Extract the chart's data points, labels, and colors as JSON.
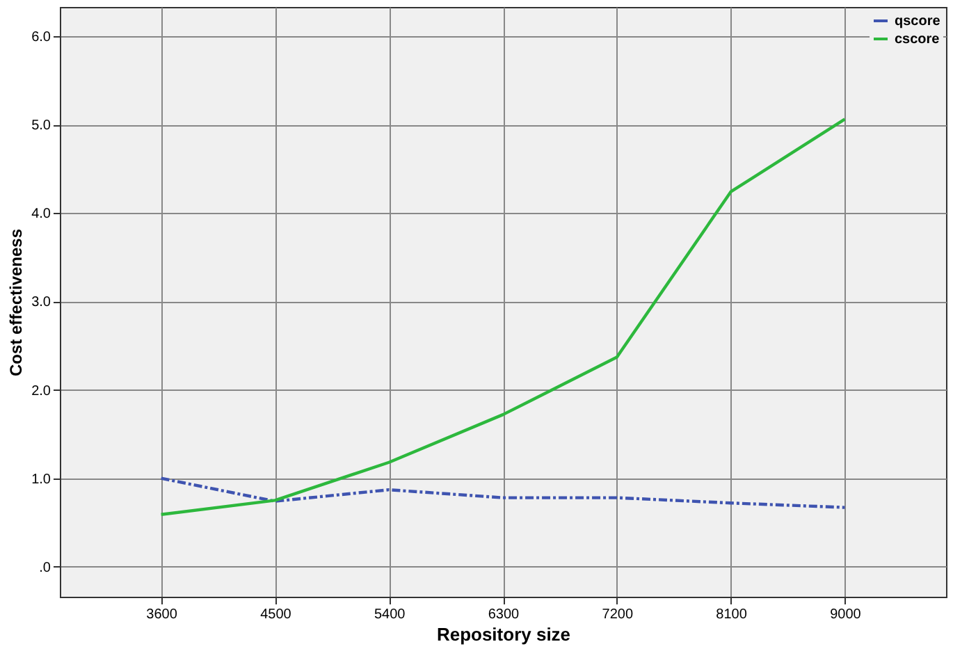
{
  "chart_data": {
    "type": "line",
    "xlabel": "Repository size",
    "ylabel": "Cost effectiveness",
    "x": [
      3600,
      4500,
      5400,
      6300,
      7200,
      8100,
      9000
    ],
    "series": [
      {
        "name": "qscore",
        "color": "#3f54b0",
        "line_style": "dashed",
        "values": [
          1.0,
          0.74,
          0.87,
          0.78,
          0.78,
          0.72,
          0.67
        ]
      },
      {
        "name": "cscore",
        "color": "#2db83d",
        "line_style": "solid",
        "values": [
          0.59,
          0.75,
          1.18,
          1.72,
          2.37,
          4.24,
          5.06
        ]
      }
    ],
    "xlim": [
      2800,
      9800
    ],
    "xticks": [
      3600,
      4500,
      5400,
      6300,
      7200,
      8100,
      9000
    ],
    "ylim": [
      -0.34,
      6.33
    ],
    "yticks": [
      {
        "value": 0,
        "label": ".0"
      },
      {
        "value": 1,
        "label": "1.0"
      },
      {
        "value": 2,
        "label": "2.0"
      },
      {
        "value": 3,
        "label": "3.0"
      },
      {
        "value": 4,
        "label": "4.0"
      },
      {
        "value": 5,
        "label": "5.0"
      },
      {
        "value": 6,
        "label": "6.0"
      }
    ],
    "grid": true,
    "legend": "top right",
    "marker": "none"
  }
}
